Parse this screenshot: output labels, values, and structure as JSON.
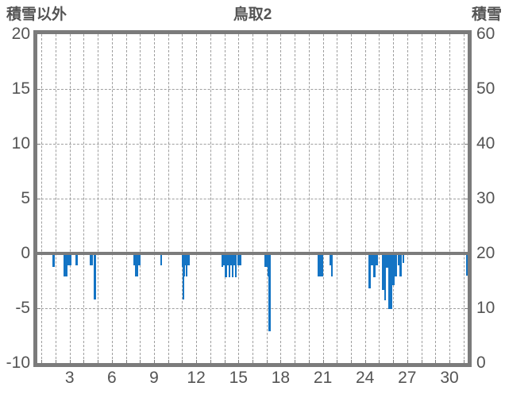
{
  "header": {
    "left_axis_title": "積雪以外",
    "chart_title": "鳥取2",
    "right_axis_title": "積雪"
  },
  "colors": {
    "bar": "#1474c4",
    "frame": "#7b7b7b",
    "grid": "#9f9f9f",
    "text": "#545454",
    "background": "#ffffff"
  },
  "chart_data": {
    "type": "bar",
    "title": "鳥取2",
    "subtitle": "",
    "legend": "none",
    "grid": "dashed vertical per day, dashed horizontal per 5 units, solid zero line",
    "left_axis": {
      "label": "積雪以外",
      "min": -10,
      "max": 20,
      "ticks": [
        20,
        15,
        10,
        5,
        0,
        -5,
        -10
      ]
    },
    "right_axis": {
      "label": "積雪",
      "min": 0,
      "max": 60,
      "ticks": [
        60,
        50,
        40,
        30,
        20,
        10,
        0
      ]
    },
    "x_axis": {
      "unit": "day of month",
      "min_day": 1,
      "max_day": 31,
      "tick_labels": [
        "3",
        "6",
        "9",
        "12",
        "15",
        "18",
        "21",
        "24",
        "27",
        "30"
      ],
      "tick_days": [
        3,
        6,
        9,
        12,
        15,
        18,
        21,
        24,
        27,
        30
      ]
    },
    "h_dashed_values": [
      15,
      10,
      5,
      -5
    ],
    "side_tick_values": [
      15,
      10,
      5,
      -5
    ],
    "series": [
      {
        "name": "積雪以外",
        "bars": [
          {
            "d0": 1.78,
            "d1": 1.92,
            "v": -1.2
          },
          {
            "d0": 2.56,
            "d1": 2.87,
            "v": -2.1
          },
          {
            "d0": 2.87,
            "d1": 3.13,
            "v": -1.1
          },
          {
            "d0": 3.42,
            "d1": 3.56,
            "v": -1.1
          },
          {
            "d0": 4.41,
            "d1": 4.63,
            "v": -1.1
          },
          {
            "d0": 4.69,
            "d1": 4.86,
            "v": -4.2
          },
          {
            "d0": 7.55,
            "d1": 7.66,
            "v": -1.1
          },
          {
            "d0": 7.66,
            "d1": 7.86,
            "v": -2.1
          },
          {
            "d0": 7.86,
            "d1": 8.03,
            "v": -1.1
          },
          {
            "d0": 9.44,
            "d1": 9.58,
            "v": -1.1
          },
          {
            "d0": 10.96,
            "d1": 11.02,
            "v": -1.2
          },
          {
            "d0": 11.02,
            "d1": 11.11,
            "v": -4.2
          },
          {
            "d0": 11.11,
            "d1": 11.2,
            "v": -2.1
          },
          {
            "d0": 11.2,
            "d1": 11.24,
            "v": -1.1
          },
          {
            "d0": 11.24,
            "d1": 11.32,
            "v": -2.1
          },
          {
            "d0": 11.32,
            "d1": 11.53,
            "v": -1.1
          },
          {
            "d0": 13.79,
            "d1": 13.9,
            "v": -1.2
          },
          {
            "d0": 13.9,
            "d1": 14.04,
            "v": -1.1
          },
          {
            "d0": 14.04,
            "d1": 14.17,
            "v": -2.2
          },
          {
            "d0": 14.17,
            "d1": 14.28,
            "v": -1.1
          },
          {
            "d0": 14.28,
            "d1": 14.41,
            "v": -2.2
          },
          {
            "d0": 14.41,
            "d1": 14.53,
            "v": -1.1
          },
          {
            "d0": 14.53,
            "d1": 14.66,
            "v": -2.2
          },
          {
            "d0": 14.66,
            "d1": 14.77,
            "v": -1.1
          },
          {
            "d0": 14.77,
            "d1": 14.9,
            "v": -2.2
          },
          {
            "d0": 14.9,
            "d1": 15.2,
            "v": -1.1
          },
          {
            "d0": 16.85,
            "d1": 17.06,
            "v": -1.2
          },
          {
            "d0": 17.06,
            "d1": 17.15,
            "v": -2.1
          },
          {
            "d0": 17.15,
            "d1": 17.28,
            "v": -7.1
          },
          {
            "d0": 20.64,
            "d1": 21.0,
            "v": -2.1
          },
          {
            "d0": 21.49,
            "d1": 21.59,
            "v": -1.1
          },
          {
            "d0": 21.59,
            "d1": 21.68,
            "v": -2.1
          },
          {
            "d0": 24.26,
            "d1": 24.41,
            "v": -3.2
          },
          {
            "d0": 24.41,
            "d1": 24.6,
            "v": -1.1
          },
          {
            "d0": 24.6,
            "d1": 24.74,
            "v": -2.2
          },
          {
            "d0": 24.74,
            "d1": 24.92,
            "v": -1.1
          },
          {
            "d0": 25.19,
            "d1": 25.35,
            "v": -3.3
          },
          {
            "d0": 25.35,
            "d1": 25.47,
            "v": -4.3
          },
          {
            "d0": 25.47,
            "d1": 25.67,
            "v": -1.3
          },
          {
            "d0": 25.67,
            "d1": 25.96,
            "v": -5.1
          },
          {
            "d0": 25.96,
            "d1": 26.11,
            "v": -2.9
          },
          {
            "d0": 26.11,
            "d1": 26.28,
            "v": -2.1
          },
          {
            "d0": 26.35,
            "d1": 26.45,
            "v": -1.1
          },
          {
            "d0": 26.45,
            "d1": 26.64,
            "v": -2.1
          },
          {
            "d0": 26.64,
            "d1": 26.73,
            "v": -0.9
          },
          {
            "d0": 31.28,
            "d1": 31.42,
            "v": -2.0
          }
        ]
      }
    ]
  }
}
